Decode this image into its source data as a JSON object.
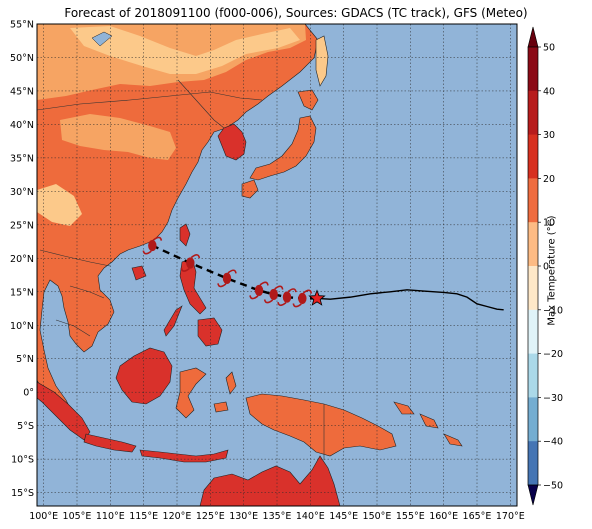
{
  "title": "Forecast of 2018091100 (f000-006), Sources: GDACS (TC track), GFS (Meteo)",
  "colorbar": {
    "label": "Max Temperature (°C)",
    "ticks": [
      50,
      40,
      30,
      20,
      10,
      0,
      -10,
      -20,
      -30,
      -40,
      -50
    ],
    "colors": [
      "#8b0a16",
      "#b71c1c",
      "#d7301f",
      "#ef6c3f",
      "#fdbb84",
      "#fee8c8",
      "#e0f3f8",
      "#abd9e9",
      "#74add1",
      "#4575b4",
      "#313695"
    ]
  },
  "colors": {
    "ocean": "#91b4d8",
    "land_hot": "#ee6b3c",
    "land_warm": "#f6a463",
    "land_mild": "#fcc98a",
    "land_very_hot": "#d9312b",
    "grid": "#2b2b2b",
    "track_past": "#000000",
    "track_forecast": "#000000",
    "storm_symbol": "#b01a1a",
    "current_position": "#e62020"
  },
  "axes": {
    "lon_labels": [
      "100°E",
      "105°E",
      "110°E",
      "115°E",
      "120°E",
      "125°E",
      "130°E",
      "135°E",
      "140°E",
      "145°E",
      "150°E",
      "155°E",
      "160°E",
      "165°E",
      "170°E"
    ],
    "lat_labels": [
      "55°N",
      "50°N",
      "45°N",
      "40°N",
      "35°N",
      "30°N",
      "25°N",
      "20°N",
      "15°N",
      "10°N",
      "5°N",
      "0°",
      "5°S",
      "10°S",
      "15°S"
    ],
    "lon_range": [
      99,
      171
    ],
    "lat_range": [
      -17,
      55
    ],
    "grid": true
  },
  "track": {
    "current_position": {
      "lon": 141.0,
      "lat": 14.0,
      "icon": "star-icon"
    },
    "forecast_positions": [
      {
        "lon": 138.8,
        "lat": 14.0
      },
      {
        "lon": 136.5,
        "lat": 14.2
      },
      {
        "lon": 134.5,
        "lat": 14.6
      },
      {
        "lon": 132.3,
        "lat": 15.2
      },
      {
        "lon": 127.5,
        "lat": 17.0
      },
      {
        "lon": 122.0,
        "lat": 19.3
      },
      {
        "lon": 116.3,
        "lat": 21.9
      }
    ],
    "past_track": [
      [
        141.0,
        14.0
      ],
      [
        143.0,
        13.9
      ],
      [
        146.0,
        14.2
      ],
      [
        149.0,
        14.7
      ],
      [
        152.0,
        15.0
      ],
      [
        154.5,
        15.3
      ],
      [
        157.0,
        15.1
      ],
      [
        160.0,
        14.9
      ],
      [
        162.0,
        14.7
      ],
      [
        163.5,
        14.2
      ],
      [
        165.0,
        13.2
      ],
      [
        166.5,
        12.8
      ],
      [
        168.0,
        12.4
      ],
      [
        169.0,
        12.3
      ]
    ],
    "storm_icon": "tropical-cyclone-icon"
  }
}
